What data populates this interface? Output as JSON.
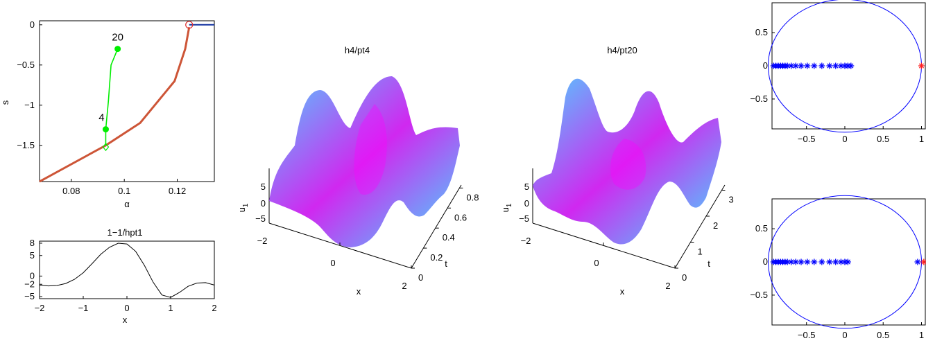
{
  "colors": {
    "branch": "#cd5537",
    "green": "#00ee00",
    "circle": "#0000ff",
    "marker": "#0000ff",
    "red": "#ff2020",
    "surface_low": "#00ffff",
    "surface_high": "#ff00ff"
  },
  "chart_data": [
    {
      "type": "line",
      "panel": "bifurcation",
      "xlabel": "α",
      "ylabel": "s",
      "xlim": [
        0.068,
        0.134
      ],
      "ylim": [
        -1.95,
        0.05
      ],
      "xticks": [
        0.08,
        0.1,
        0.12
      ],
      "xtick_labels": [
        "0.08",
        "0.1",
        "0.12"
      ],
      "yticks": [
        0,
        -0.5,
        -1,
        -1.5
      ],
      "ytick_labels": [
        "0",
        "−0.5",
        "−1",
        "−1.5"
      ],
      "series": [
        {
          "role": "main-branch",
          "x": [
            0.068,
            0.093,
            0.106,
            0.119,
            0.123,
            0.1245
          ],
          "y": [
            -1.95,
            -1.5,
            -1.22,
            -0.7,
            -0.3,
            -0.03
          ]
        },
        {
          "role": "top-branch",
          "x": [
            0.1245,
            0.134
          ],
          "y": [
            0.0,
            0.0
          ]
        },
        {
          "role": "hopf-branch",
          "x": [
            0.093,
            0.093,
            0.094,
            0.095,
            0.0975
          ],
          "y": [
            -1.5,
            -1.3,
            -0.95,
            -0.5,
            -0.3
          ]
        }
      ],
      "points": [
        {
          "label": "20",
          "x": 0.0975,
          "y": -0.3
        },
        {
          "label": "4",
          "x": 0.093,
          "y": -1.3
        }
      ],
      "markers": [
        {
          "kind": "diamond",
          "x": 0.093,
          "y": -1.52
        },
        {
          "kind": "circle",
          "x": 0.1245,
          "y": 0.0
        }
      ]
    },
    {
      "type": "line",
      "panel": "profile",
      "title": "1−1/hpt1",
      "xlabel": "x",
      "xlim": [
        -2,
        2
      ],
      "ylim": [
        -5.5,
        8.5
      ],
      "xticks": [
        -2,
        -1,
        0,
        1,
        2
      ],
      "xtick_labels": [
        "−2",
        "−1",
        "0",
        "1",
        "2"
      ],
      "yticks": [
        5,
        0,
        -5
      ],
      "ytick_labels": [
        "5",
        "0",
        "−5"
      ],
      "extra_yticks": [
        8,
        -2
      ],
      "extra_ytick_labels": [
        "8",
        "−2"
      ],
      "x": [
        -2.0,
        -1.8,
        -1.6,
        -1.4,
        -1.2,
        -1.0,
        -0.8,
        -0.6,
        -0.4,
        -0.2,
        0.0,
        0.2,
        0.4,
        0.6,
        0.8,
        1.0,
        1.2,
        1.4,
        1.6,
        1.8,
        2.0
      ],
      "y": [
        -2.2,
        -2.4,
        -2.3,
        -1.8,
        -0.8,
        0.8,
        3.0,
        5.3,
        7.0,
        8.0,
        7.8,
        6.0,
        2.6,
        -1.5,
        -4.6,
        -5.2,
        -4.0,
        -2.5,
        -1.7,
        -1.6,
        -2.2
      ]
    },
    {
      "type": "surface",
      "panel": "surface-pt4",
      "title": "h4/pt4",
      "xlabel": "x",
      "ylabel": "t",
      "zlabel": "u",
      "zlabel_sub": "1",
      "xtick_labels": [
        "−2",
        "0",
        "2"
      ],
      "ytick_labels": [
        "0",
        "0.2",
        "0.4",
        "0.6",
        "0.8"
      ],
      "ztick_labels": [
        "5",
        "0",
        "−5"
      ]
    },
    {
      "type": "surface",
      "panel": "surface-pt20",
      "title": "h4/pt20",
      "xlabel": "x",
      "ylabel": "t",
      "zlabel": "u",
      "zlabel_sub": "1",
      "xtick_labels": [
        "−2",
        "0",
        "2"
      ],
      "ytick_labels": [
        "0",
        "1",
        "2",
        "3"
      ],
      "ztick_labels": [
        "5",
        "0",
        "−5"
      ]
    },
    {
      "type": "scatter",
      "panel": "multipliers-top",
      "xlim": [
        -0.95,
        1.05
      ],
      "ylim": [
        -0.95,
        0.95
      ],
      "xticks": [
        -0.5,
        0,
        0.5,
        1
      ],
      "xtick_labels": [
        "−0.5",
        "0",
        "0.5",
        "1"
      ],
      "yticks": [
        0.5,
        0,
        -0.5
      ],
      "ytick_labels": [
        "0.5",
        "0",
        "−0.5"
      ],
      "x": [
        -0.93,
        -0.9,
        -0.87,
        -0.84,
        -0.81,
        -0.78,
        -0.75,
        -0.7,
        -0.64,
        -0.57,
        -0.49,
        -0.4,
        -0.3,
        -0.2,
        -0.12,
        -0.05,
        0.0,
        0.04,
        0.08
      ],
      "red_x": [
        1.0
      ]
    },
    {
      "type": "scatter",
      "panel": "multipliers-bottom",
      "xlim": [
        -0.95,
        1.05
      ],
      "ylim": [
        -0.95,
        0.95
      ],
      "xticks": [
        -0.5,
        0,
        0.5,
        1
      ],
      "xtick_labels": [
        "−0.5",
        "0",
        "0.5",
        "1"
      ],
      "yticks": [
        0.5,
        0,
        -0.5
      ],
      "ytick_labels": [
        "0.5",
        "0",
        "−0.5"
      ],
      "x": [
        -0.93,
        -0.9,
        -0.87,
        -0.84,
        -0.81,
        -0.78,
        -0.75,
        -0.7,
        -0.64,
        -0.57,
        -0.49,
        -0.4,
        -0.3,
        -0.2,
        -0.12,
        -0.05,
        0.0,
        0.04,
        0.95
      ],
      "red_x": [
        1.03
      ]
    }
  ]
}
